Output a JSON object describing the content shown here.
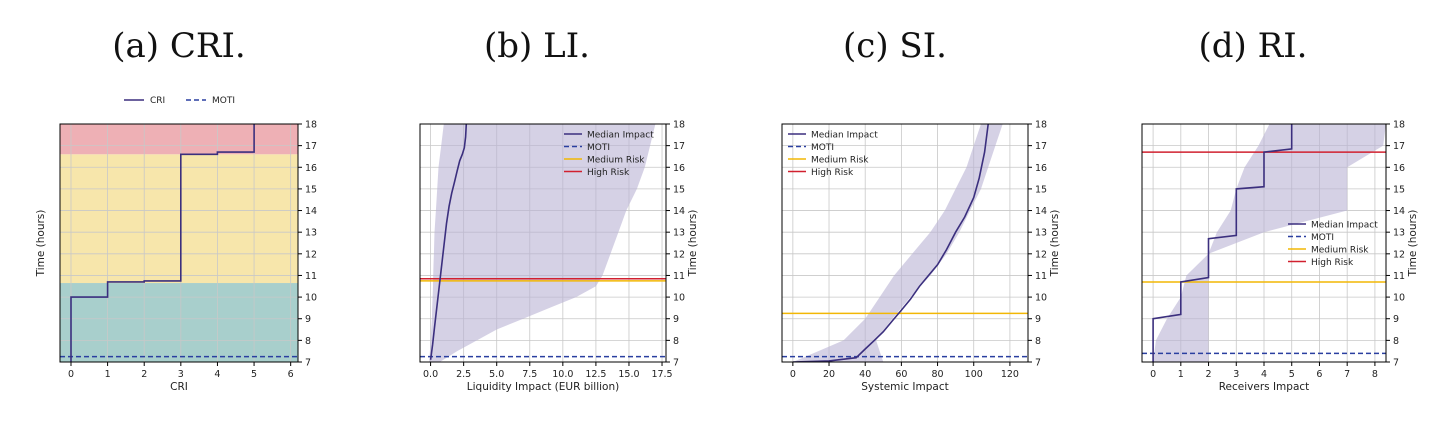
{
  "colors": {
    "median": "#3b2f7e",
    "band": "#b9b2d3",
    "moti": "#2a3fa0",
    "medium_risk": "#f2b705",
    "high_risk": "#d1202f",
    "zone_low": "#a8cfcc",
    "zone_medium": "#f7e6ab",
    "zone_high": "#eeb0b5",
    "grid": "#c8c8c8"
  },
  "chart_data": [
    {
      "id": "cri",
      "type": "line",
      "caption": "(a) CRI.",
      "xlabel": "CRI",
      "ylabel": "Time (hours)",
      "xlim": [
        -0.3,
        6.2
      ],
      "ylim": [
        7,
        18
      ],
      "xticks": [
        0,
        1,
        2,
        3,
        4,
        5,
        6
      ],
      "xtick_labels": [
        "0",
        "1",
        "2",
        "3",
        "4",
        "5",
        "6"
      ],
      "yticks": [
        7,
        8,
        9,
        10,
        11,
        12,
        13,
        14,
        15,
        16,
        17,
        18
      ],
      "grid": true,
      "legend": {
        "position": "top-outside",
        "entries": [
          "CRI",
          "MOTI"
        ]
      },
      "zones": [
        {
          "y0": 7,
          "y1": 10.65,
          "color_key": "zone_low"
        },
        {
          "y0": 10.65,
          "y1": 16.6,
          "color_key": "zone_medium"
        },
        {
          "y0": 16.6,
          "y1": 18,
          "color_key": "zone_high"
        }
      ],
      "series": [
        {
          "name": "CRI",
          "style": "step",
          "color_key": "median",
          "x": [
            0,
            0,
            1,
            1,
            2,
            2,
            3,
            3,
            4,
            4,
            5,
            5
          ],
          "y": [
            7,
            10,
            10,
            10.7,
            10.7,
            10.75,
            10.75,
            16.6,
            16.6,
            16.7,
            16.7,
            18
          ]
        }
      ],
      "hlines": [
        {
          "name": "MOTI",
          "y": 7.25,
          "style": "dashed",
          "color_key": "moti"
        }
      ]
    },
    {
      "id": "li",
      "type": "line",
      "caption": "(b) LI.",
      "xlabel": "Liquidity Impact (EUR billion)",
      "ylabel": "Time (hours)",
      "xlim": [
        -0.8,
        17.8
      ],
      "ylim": [
        7,
        18
      ],
      "xticks": [
        0,
        2.5,
        5,
        7.5,
        10,
        12.5,
        15,
        17.5
      ],
      "xtick_labels": [
        "0.0",
        "2.5",
        "5.0",
        "7.5",
        "10.0",
        "12.5",
        "15.0",
        "17.5"
      ],
      "yticks": [
        7,
        8,
        9,
        10,
        11,
        12,
        13,
        14,
        15,
        16,
        17,
        18
      ],
      "grid": true,
      "legend": {
        "position": "top-right",
        "entries": [
          "Median Impact",
          "MOTI",
          "Medium Risk",
          "High Risk"
        ]
      },
      "series": [
        {
          "name": "Median Impact",
          "style": "line",
          "color_key": "median",
          "x": [
            0,
            0.15,
            0.3,
            0.45,
            0.6,
            0.75,
            0.9,
            1.05,
            1.2,
            1.4,
            1.6,
            1.8,
            2.0,
            2.2,
            2.4,
            2.55,
            2.65,
            2.7
          ],
          "y": [
            7.1,
            7.8,
            8.6,
            9.4,
            10.2,
            11.0,
            11.8,
            12.6,
            13.4,
            14.2,
            14.8,
            15.3,
            15.8,
            16.3,
            16.6,
            16.9,
            17.4,
            18
          ]
        },
        {
          "name": "band",
          "style": "band",
          "color_key": "band",
          "y": [
            7,
            7.5,
            8,
            8.5,
            9,
            9.5,
            10,
            10.5,
            11,
            11.5,
            12,
            13,
            14,
            15,
            16,
            17,
            18
          ],
          "lower": [
            -0.1,
            -0.05,
            0,
            0.05,
            0.1,
            0.12,
            0.15,
            0.18,
            0.2,
            0.22,
            0.25,
            0.3,
            0.4,
            0.5,
            0.6,
            0.8,
            1.0
          ],
          "upper": [
            0.7,
            2.0,
            3.5,
            5.0,
            7.0,
            9.0,
            11.0,
            12.5,
            13.0,
            13.3,
            13.6,
            14.2,
            14.8,
            15.6,
            16.2,
            16.6,
            17.0
          ]
        }
      ],
      "hlines": [
        {
          "name": "MOTI",
          "y": 7.25,
          "style": "dashed",
          "color_key": "moti"
        },
        {
          "name": "Medium Risk",
          "y": 10.75,
          "style": "solid",
          "color_key": "medium_risk"
        },
        {
          "name": "High Risk",
          "y": 10.85,
          "style": "solid",
          "color_key": "high_risk"
        }
      ]
    },
    {
      "id": "si",
      "type": "line",
      "caption": "(c) SI.",
      "xlabel": "Systemic Impact",
      "ylabel": "Time (hours)",
      "xlim": [
        -6,
        130
      ],
      "ylim": [
        7,
        18
      ],
      "xticks": [
        0,
        20,
        40,
        60,
        80,
        100,
        120
      ],
      "xtick_labels": [
        "0",
        "20",
        "40",
        "60",
        "80",
        "100",
        "120"
      ],
      "yticks": [
        7,
        8,
        9,
        10,
        11,
        12,
        13,
        14,
        15,
        16,
        17,
        18
      ],
      "grid": true,
      "legend": {
        "position": "top-left",
        "entries": [
          "Median Impact",
          "MOTI",
          "Medium Risk",
          "High Risk"
        ]
      },
      "series": [
        {
          "name": "Median Impact",
          "style": "line",
          "color_key": "median",
          "x": [
            0,
            20,
            35,
            40,
            45,
            50,
            55,
            60,
            65,
            70,
            75,
            80,
            85,
            90,
            95,
            100,
            103,
            106,
            108
          ],
          "y": [
            7.0,
            7.05,
            7.2,
            7.6,
            8.0,
            8.4,
            8.9,
            9.4,
            9.9,
            10.5,
            11.0,
            11.5,
            12.2,
            13.0,
            13.7,
            14.6,
            15.5,
            16.7,
            18
          ]
        },
        {
          "name": "band",
          "style": "band",
          "color_key": "band",
          "y": [
            7,
            8,
            9,
            10,
            11,
            12,
            13,
            14,
            15,
            16,
            17,
            18
          ],
          "lower": [
            0,
            28,
            40,
            48,
            56,
            66,
            76,
            84,
            90,
            96,
            100,
            104
          ],
          "upper": [
            50,
            46,
            55,
            65,
            76,
            85,
            92,
            98,
            104,
            108,
            112,
            116
          ]
        }
      ],
      "hlines": [
        {
          "name": "MOTI",
          "y": 7.25,
          "style": "dashed",
          "color_key": "moti"
        },
        {
          "name": "Medium Risk",
          "y": 9.25,
          "style": "solid",
          "color_key": "medium_risk"
        }
      ]
    },
    {
      "id": "ri",
      "type": "line",
      "caption": "(d) RI.",
      "xlabel": "Receivers Impact",
      "ylabel": "Time (hours)",
      "xlim": [
        -0.4,
        8.4
      ],
      "ylim": [
        7,
        18
      ],
      "xticks": [
        0,
        1,
        2,
        3,
        4,
        5,
        6,
        7,
        8
      ],
      "xtick_labels": [
        "0",
        "1",
        "2",
        "3",
        "4",
        "5",
        "6",
        "7",
        "8"
      ],
      "yticks": [
        7,
        8,
        9,
        10,
        11,
        12,
        13,
        14,
        15,
        16,
        17,
        18
      ],
      "grid": true,
      "legend": {
        "position": "right",
        "entries": [
          "Median Impact",
          "MOTI",
          "Medium Risk",
          "High Risk"
        ]
      },
      "series": [
        {
          "name": "Median Impact",
          "style": "step",
          "color_key": "median",
          "x": [
            0,
            0,
            1,
            1,
            2,
            2,
            3,
            3,
            4,
            4,
            5,
            5
          ],
          "y": [
            7,
            9.0,
            9.2,
            10.7,
            10.9,
            12.7,
            12.85,
            15.0,
            15.1,
            16.7,
            16.85,
            18
          ]
        },
        {
          "name": "band",
          "style": "band",
          "color_key": "band",
          "y": [
            7,
            8,
            9,
            10,
            11,
            12,
            13,
            14,
            15,
            16,
            17,
            18
          ],
          "lower": [
            0,
            0.1,
            0.5,
            1.0,
            1.2,
            2.0,
            2.3,
            2.8,
            3.0,
            3.3,
            3.8,
            4.2
          ],
          "upper": [
            2.0,
            2.0,
            2.0,
            2.0,
            2.0,
            2.0,
            4.0,
            7.0,
            7.0,
            7.0,
            8.3,
            8.4
          ]
        }
      ],
      "hlines": [
        {
          "name": "MOTI",
          "y": 7.4,
          "style": "dashed",
          "color_key": "moti"
        },
        {
          "name": "Medium Risk",
          "y": 10.7,
          "style": "solid",
          "color_key": "medium_risk"
        },
        {
          "name": "High Risk",
          "y": 16.7,
          "style": "solid",
          "color_key": "high_risk"
        }
      ]
    }
  ]
}
